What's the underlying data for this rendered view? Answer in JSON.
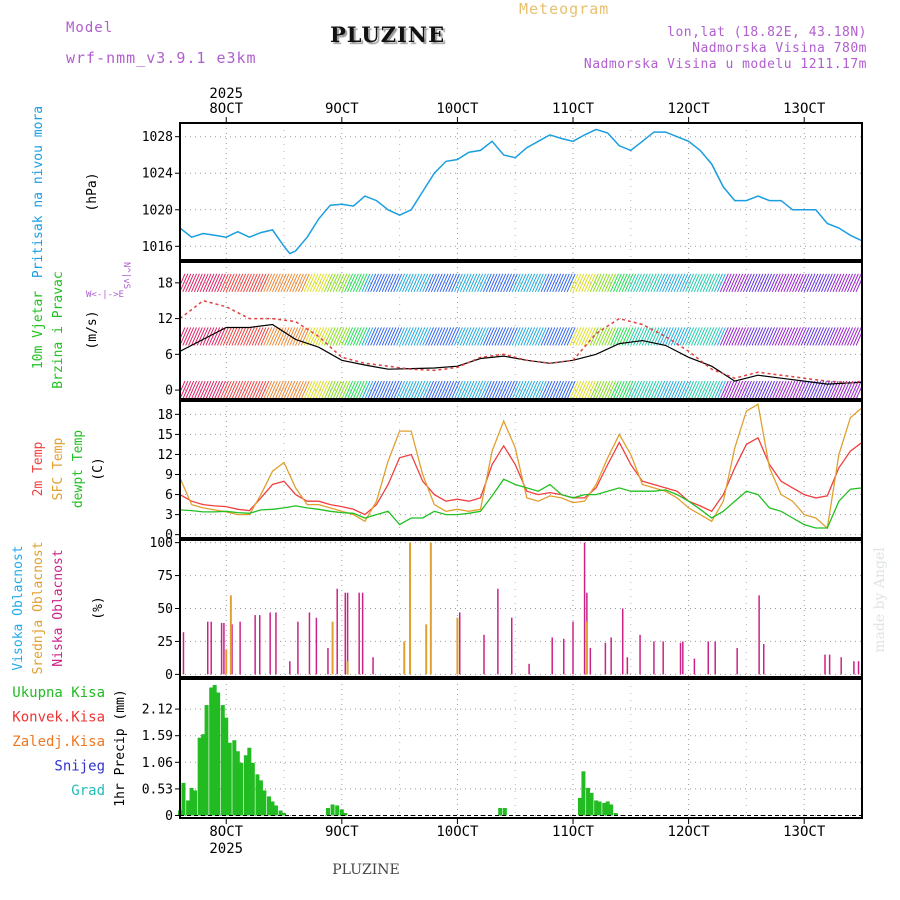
{
  "header": {
    "model_label": "Model",
    "model_name": "wrf-nmm_v3.9.1 e3km",
    "location": "PLUZINE",
    "meteogram_label": "Meteogram",
    "coords": "lon,lat (18.82E, 43.18N)",
    "elevation": "Nadmorska Visina 780m",
    "model_elevation": "Nadmorska Visina u modelu 1211.17m",
    "bottom_location": "PLUZINE",
    "credit": "made by Angel"
  },
  "axis": {
    "year": "2025",
    "dates": [
      "8OCT",
      "9OCT",
      "10OCT",
      "11OCT",
      "12OCT",
      "13OCT"
    ]
  },
  "colors": {
    "pressure": "#1a9ee0",
    "temp": "#f04040",
    "sfc": "#e0a030",
    "dewpt": "#22c022",
    "precip": "#22bb22",
    "high_cloud": "#22aaee",
    "mid_cloud": "#e0a030",
    "low_cloud": "#cc2288",
    "wind_line": "#000000",
    "wind_marker": "#e04040"
  },
  "panels": {
    "pressure": {
      "label1": "Pritisak na nivou mora",
      "unit": "(hPa)"
    },
    "wind": {
      "label1": "10m Vjetar",
      "label2": "Brzina i Pravac",
      "unit": "(m/s)",
      "compass": [
        "W",
        "<",
        "-",
        "|",
        "-",
        ">",
        "E"
      ],
      "compass_v": [
        "N",
        "^",
        "|",
        "v",
        "S"
      ]
    },
    "temp": {
      "label1": "2m Temp",
      "label2": "SFC Temp",
      "label3": "dewpt Temp",
      "unit": "(C)"
    },
    "cloud": {
      "label1": "Visoka Oblacnost",
      "label2": "Srednja Oblacnost",
      "label3": "Niska Oblacnost",
      "unit": "(%)"
    },
    "precip": {
      "unit_label": "1hr Precip (mm)",
      "legend": [
        "Ukupna Kisa",
        "Konvek.Kisa",
        "Zaledj.Kisa",
        "Snijeg",
        "Grad"
      ],
      "legend_colors": [
        "#22bb22",
        "#ee3333",
        "#ee7722",
        "#3333cc",
        "#22bbbb"
      ]
    }
  },
  "chart_data": [
    {
      "type": "line",
      "title": "Pritisak na nivou mora",
      "ylabel": "(hPa)",
      "yticks": [
        "1016",
        "1020",
        "1024",
        "1028"
      ],
      "ylim": [
        1014.5,
        1029.5
      ],
      "x_day_start": 7.6,
      "x_day_end": 13.5,
      "x": [
        7.6,
        7.7,
        7.8,
        7.9,
        8.0,
        8.1,
        8.2,
        8.3,
        8.4,
        8.5,
        8.55,
        8.6,
        8.7,
        8.8,
        8.9,
        9.0,
        9.1,
        9.2,
        9.3,
        9.4,
        9.5,
        9.6,
        9.7,
        9.8,
        9.9,
        10.0,
        10.1,
        10.2,
        10.3,
        10.4,
        10.5,
        10.6,
        10.7,
        10.8,
        10.9,
        11.0,
        11.1,
        11.2,
        11.3,
        11.4,
        11.5,
        11.6,
        11.7,
        11.8,
        11.9,
        12.0,
        12.1,
        12.2,
        12.3,
        12.4,
        12.5,
        12.6,
        12.7,
        12.8,
        12.9,
        13.0,
        13.1,
        13.2,
        13.3,
        13.4,
        13.5
      ],
      "series": [
        {
          "values": [
            1018.0,
            1017.0,
            1017.4,
            1017.2,
            1017.0,
            1017.6,
            1017.0,
            1017.5,
            1017.8,
            1016.0,
            1015.2,
            1015.5,
            1017.0,
            1019.0,
            1020.5,
            1020.6,
            1020.4,
            1021.5,
            1021.0,
            1020.0,
            1019.4,
            1020.0,
            1022.0,
            1024.0,
            1025.3,
            1025.5,
            1026.3,
            1026.5,
            1027.5,
            1026.0,
            1025.7,
            1026.8,
            1027.5,
            1028.2,
            1027.8,
            1027.5,
            1028.2,
            1028.8,
            1028.4,
            1027.0,
            1026.5,
            1027.5,
            1028.5,
            1028.5,
            1028.0,
            1027.5,
            1026.5,
            1025.0,
            1022.5,
            1021.0,
            1021.0,
            1021.5,
            1021.0,
            1021.0,
            1020.0,
            1020.0,
            1020.0,
            1018.5,
            1018.0,
            1017.2,
            1016.6
          ]
        }
      ]
    },
    {
      "type": "line",
      "title": "10m Vjetar Brzina i Pravac",
      "ylabel": "(m/s)",
      "yticks": [
        "0",
        "6",
        "12",
        "18"
      ],
      "ylim": [
        -1.5,
        21.5
      ],
      "x": [
        7.6,
        7.8,
        8.0,
        8.2,
        8.4,
        8.6,
        8.8,
        9.0,
        9.2,
        9.4,
        9.6,
        9.8,
        10.0,
        10.2,
        10.4,
        10.6,
        10.8,
        11.0,
        11.2,
        11.4,
        11.6,
        11.8,
        12.0,
        12.2,
        12.4,
        12.6,
        12.8,
        13.0,
        13.2,
        13.4,
        13.5
      ],
      "series": [
        {
          "name": "",
          "values": [
            6.5,
            8.5,
            10.5,
            10.5,
            11.0,
            8.5,
            7.2,
            5.0,
            4.2,
            3.5,
            3.6,
            3.7,
            4.0,
            5.3,
            5.7,
            5.0,
            4.5,
            5.0,
            6.0,
            7.8,
            8.3,
            7.5,
            5.5,
            4.0,
            1.5,
            2.5,
            2.0,
            1.5,
            1.0,
            1.2,
            1.3
          ]
        },
        {
          "name": "",
          "values": [
            12.0,
            15.0,
            14.0,
            12.0,
            12.0,
            11.5,
            9.0,
            5.5,
            4.5,
            4.0,
            3.5,
            3.3,
            3.8,
            5.5,
            6.0,
            5.0,
            4.5,
            5.0,
            9.5,
            12.0,
            11.0,
            9.0,
            6.5,
            3.5,
            2.0,
            3.0,
            2.5,
            2.0,
            1.5,
            1.2,
            1.5
          ]
        }
      ]
    },
    {
      "type": "line",
      "title": "2m Temp / SFC Temp / dewpt Temp",
      "ylabel": "(C)",
      "yticks": [
        "0",
        "3",
        "6",
        "9",
        "12",
        "15",
        "18"
      ],
      "ylim": [
        -0.5,
        20.0
      ],
      "x": [
        7.6,
        7.7,
        7.8,
        7.9,
        8.0,
        8.1,
        8.2,
        8.3,
        8.4,
        8.5,
        8.6,
        8.7,
        8.8,
        8.9,
        9.0,
        9.1,
        9.2,
        9.3,
        9.4,
        9.5,
        9.6,
        9.7,
        9.8,
        9.9,
        10.0,
        10.1,
        10.2,
        10.3,
        10.4,
        10.5,
        10.6,
        10.7,
        10.8,
        10.9,
        11.0,
        11.1,
        11.2,
        11.3,
        11.4,
        11.5,
        11.6,
        11.7,
        11.8,
        11.9,
        12.0,
        12.1,
        12.2,
        12.3,
        12.4,
        12.5,
        12.6,
        12.7,
        12.8,
        12.9,
        13.0,
        13.1,
        13.2,
        13.3,
        13.4,
        13.5
      ],
      "series": [
        {
          "name": "2m Temp",
          "values": [
            6.0,
            5.0,
            4.5,
            4.3,
            4.2,
            3.8,
            3.6,
            5.5,
            7.5,
            8.0,
            6.0,
            5.0,
            5.0,
            4.5,
            4.2,
            3.8,
            3.0,
            4.5,
            7.5,
            11.5,
            12.0,
            8.0,
            6.0,
            5.0,
            5.3,
            5.0,
            5.5,
            10.5,
            13.3,
            10.5,
            6.5,
            6.0,
            6.3,
            6.0,
            5.5,
            5.5,
            7.0,
            10.5,
            13.8,
            10.5,
            8.0,
            7.5,
            7.0,
            6.5,
            5.0,
            4.3,
            3.5,
            6.0,
            10.0,
            13.5,
            14.5,
            10.5,
            8.0,
            7.0,
            6.0,
            5.5,
            5.8,
            10.0,
            12.5,
            13.8
          ]
        },
        {
          "name": "SFC Temp",
          "values": [
            8.5,
            4.5,
            4.0,
            3.7,
            3.4,
            3.0,
            3.0,
            6.0,
            9.5,
            10.8,
            7.0,
            4.5,
            4.5,
            4.0,
            3.5,
            3.0,
            2.0,
            5.0,
            11.0,
            15.5,
            15.5,
            9.0,
            4.5,
            3.5,
            3.8,
            3.5,
            3.8,
            12.5,
            17.0,
            13.0,
            5.5,
            5.0,
            5.8,
            5.5,
            4.8,
            5.0,
            7.5,
            11.5,
            15.0,
            12.0,
            7.5,
            7.0,
            6.5,
            5.5,
            4.0,
            3.0,
            2.0,
            5.0,
            13.0,
            18.5,
            19.5,
            10.0,
            6.0,
            5.0,
            3.0,
            2.5,
            1.0,
            12.0,
            17.5,
            19.0
          ]
        },
        {
          "name": "dewpt Temp",
          "values": [
            3.7,
            3.6,
            3.4,
            3.4,
            3.5,
            3.3,
            3.2,
            3.7,
            3.8,
            4.0,
            4.3,
            4.0,
            3.8,
            3.5,
            3.3,
            3.2,
            2.5,
            3.0,
            3.5,
            1.5,
            2.5,
            2.5,
            3.5,
            3.0,
            3.0,
            3.2,
            3.5,
            5.8,
            8.3,
            7.5,
            7.0,
            6.5,
            7.5,
            6.0,
            5.5,
            6.0,
            6.0,
            6.5,
            7.0,
            6.5,
            6.5,
            6.5,
            6.7,
            6.0,
            5.0,
            3.8,
            2.5,
            3.5,
            5.0,
            6.5,
            6.0,
            4.0,
            3.5,
            2.5,
            1.5,
            1.0,
            1.0,
            5.0,
            6.8,
            7.0
          ]
        }
      ]
    },
    {
      "type": "bar",
      "title": "Visoka / Srednja / Niska Oblacnost",
      "ylabel": "(%)",
      "yticks": [
        "0",
        "25",
        "50",
        "75",
        "100"
      ],
      "ylim": [
        -2,
        102
      ],
      "series": [
        {
          "name": "Niska Oblacnost",
          "x": [
            7.63,
            7.84,
            7.87,
            7.96,
            7.98,
            8.05,
            8.12,
            8.25,
            8.29,
            8.38,
            8.43,
            8.55,
            8.62,
            8.72,
            8.78,
            8.88,
            8.96,
            9.03,
            9.05,
            9.15,
            9.18,
            9.27,
            10.02,
            10.23,
            10.35,
            10.47,
            10.62,
            10.82,
            10.92,
            11.0,
            11.1,
            11.12,
            11.15,
            11.28,
            11.33,
            11.43,
            11.47,
            11.58,
            11.7,
            11.78,
            11.93,
            11.95,
            12.05,
            12.17,
            12.23,
            12.42,
            12.61,
            12.65,
            13.18,
            13.22,
            13.32,
            13.43,
            13.47
          ],
          "values": [
            32,
            40,
            40,
            39,
            39,
            38,
            40,
            45,
            45,
            47,
            47,
            10,
            40,
            47,
            43,
            20,
            65,
            62,
            62,
            62,
            62,
            13,
            47,
            30,
            65,
            43,
            8,
            28,
            27,
            40,
            100,
            62,
            20,
            24,
            28,
            50,
            13,
            30,
            25,
            25,
            24,
            25,
            12,
            25,
            25,
            20,
            60,
            23,
            15,
            15,
            13,
            10,
            10
          ]
        },
        {
          "name": "Srednja Oblacnost",
          "x": [
            8.0,
            8.04,
            8.92,
            9.05,
            9.54,
            9.59,
            9.73,
            9.77,
            10.0,
            11.12
          ],
          "values": [
            19,
            60,
            40,
            10,
            25,
            100,
            38,
            100,
            43,
            40
          ]
        }
      ]
    },
    {
      "type": "bar",
      "title": "1hr Precip (mm)",
      "ylabel": "1hr Precip (mm)",
      "yticks": [
        "0",
        "0.53",
        "1.06",
        "1.59",
        "2.12"
      ],
      "ylim": [
        -0.05,
        2.72
      ],
      "series": [
        {
          "name": "Ukupna Kisa",
          "x": [
            7.6,
            7.63,
            7.67,
            7.7,
            7.73,
            7.77,
            7.8,
            7.83,
            7.87,
            7.9,
            7.93,
            7.97,
            8.0,
            8.03,
            8.07,
            8.1,
            8.13,
            8.17,
            8.2,
            8.23,
            8.27,
            8.3,
            8.33,
            8.37,
            8.4,
            8.43,
            8.47,
            8.5,
            8.88,
            8.92,
            8.96,
            9.0,
            9.03,
            10.37,
            10.41,
            11.06,
            11.09,
            11.13,
            11.16,
            11.2,
            11.23,
            11.27,
            11.3,
            11.33,
            11.37
          ],
          "values": [
            0.1,
            0.65,
            0.3,
            0.55,
            0.5,
            1.55,
            1.62,
            2.2,
            2.55,
            2.6,
            2.45,
            2.2,
            1.95,
            1.45,
            1.5,
            1.28,
            1.05,
            1.2,
            1.35,
            1.05,
            0.82,
            0.7,
            0.5,
            0.38,
            0.28,
            0.2,
            0.1,
            0.05,
            0.15,
            0.22,
            0.2,
            0.12,
            0.05,
            0.15,
            0.15,
            0.35,
            0.88,
            0.55,
            0.45,
            0.3,
            0.28,
            0.25,
            0.28,
            0.22,
            0.05
          ]
        }
      ]
    }
  ]
}
